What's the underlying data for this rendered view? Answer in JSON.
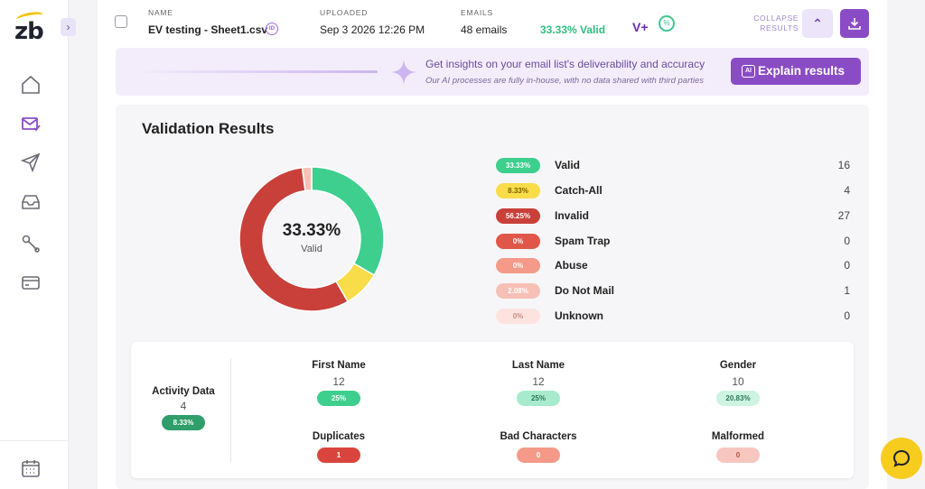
{
  "app": {
    "logo_text": "zb",
    "expand_glyph": "›"
  },
  "sidebar": {
    "items": [
      {
        "name": "home",
        "icon": "home-icon"
      },
      {
        "name": "validate",
        "icon": "mail-check-icon"
      },
      {
        "name": "campaigns",
        "icon": "send-icon"
      },
      {
        "name": "inbox",
        "icon": "inbox-icon"
      },
      {
        "name": "tools",
        "icon": "wrench-icon"
      },
      {
        "name": "billing",
        "icon": "credit-card-icon"
      }
    ],
    "bottom_icon": "calendar-icon"
  },
  "file": {
    "name_label": "NAME",
    "name": "EV testing - Sheet1.csv",
    "id_badge": "ID",
    "uploaded_label": "UPLOADED",
    "uploaded": "Sep 3 2026 12:26 PM",
    "emails_label": "EMAILS",
    "emails": "48 emails",
    "valid_pct": "33.33% Valid",
    "vplus": "V+",
    "collapse_label": "COLLAPSE RESULTS",
    "collapse_glyph": "⌃"
  },
  "insights": {
    "headline": "Get insights on your email list's deliverability and accuracy",
    "subtext": "Our AI processes are fully in-house, with no data shared with third parties",
    "button_label": "Explain results",
    "button_icon_text": "AI"
  },
  "results": {
    "title": "Validation Results",
    "center_pct": "33.33%",
    "center_label": "Valid",
    "legend": [
      {
        "pct": "33.33%",
        "name": "Valid",
        "count": "16",
        "color": "#3ecf8e",
        "text": "#ffffff"
      },
      {
        "pct": "8.33%",
        "name": "Catch-All",
        "count": "4",
        "color": "#f9dc4a",
        "text": "#7a6100"
      },
      {
        "pct": "56.25%",
        "name": "Invalid",
        "count": "27",
        "color": "#c9403a",
        "text": "#ffffff"
      },
      {
        "pct": "0%",
        "name": "Spam Trap",
        "count": "0",
        "color": "#e0574a",
        "text": "#ffffff"
      },
      {
        "pct": "0%",
        "name": "Abuse",
        "count": "0",
        "color": "#f59a88",
        "text": "#ffffff"
      },
      {
        "pct": "2.08%",
        "name": "Do Not Mail",
        "count": "1",
        "color": "#f6c0b6",
        "text": "#ffffff"
      },
      {
        "pct": "0%",
        "name": "Unknown",
        "count": "0",
        "color": "#fde3df",
        "text": "#c98e86"
      }
    ]
  },
  "chart_data": {
    "type": "pie",
    "categories": [
      "Valid",
      "Catch-All",
      "Invalid",
      "Spam Trap",
      "Abuse",
      "Do Not Mail",
      "Unknown"
    ],
    "values": [
      16,
      4,
      27,
      0,
      0,
      1,
      0
    ],
    "colors": [
      "#3ecf8e",
      "#f9dc4a",
      "#c9403a",
      "#e0574a",
      "#f59a88",
      "#f6c0b6",
      "#fde3df"
    ],
    "donut": true
  },
  "activity": {
    "label": "Activity Data",
    "value": "4",
    "pct": "8.33%",
    "stats": [
      {
        "name": "First Name",
        "value": "12",
        "pct": "25%",
        "color": "#3ecf8e",
        "text": "#ffffff"
      },
      {
        "name": "Last Name",
        "value": "12",
        "pct": "25%",
        "color": "#a7ebcc",
        "text": "#2b7a57"
      },
      {
        "name": "Gender",
        "value": "10",
        "pct": "20.83%",
        "color": "#cdf3e1",
        "text": "#2b7a57"
      },
      {
        "name": "Duplicates",
        "value": "",
        "pct": "1",
        "color": "#d9453d",
        "text": "#ffffff"
      },
      {
        "name": "Bad Characters",
        "value": "",
        "pct": "0",
        "color": "#f59a88",
        "text": "#ffffff"
      },
      {
        "name": "Malformed",
        "value": "",
        "pct": "0",
        "color": "#f7c7bf",
        "text": "#b0574b"
      }
    ]
  }
}
